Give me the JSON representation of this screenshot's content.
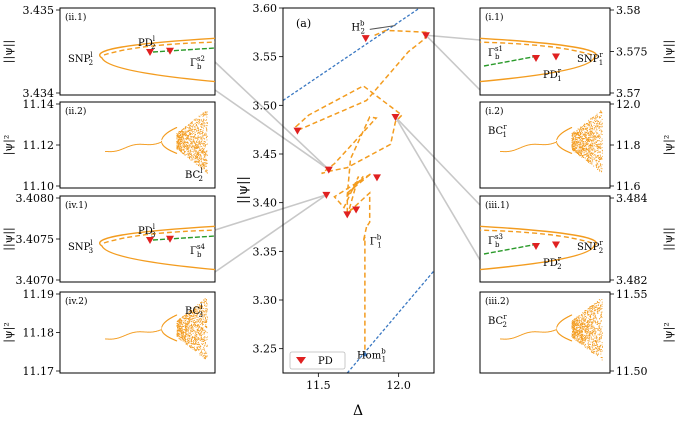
{
  "colors": {
    "orange": "#f39c1f",
    "blue": "#3a78c2",
    "green": "#2a9a2a",
    "red": "#e02020",
    "connector": "#c8c8c8"
  },
  "chart_data": {
    "main": {
      "type": "line",
      "panel_label": "(a)",
      "xlabel": "Δ",
      "ylabel": "||ψ||",
      "xlim": [
        11.28,
        12.22
      ],
      "ylim": [
        3.225,
        3.6
      ],
      "xticks": [
        11.5,
        12.0
      ],
      "xtick_labels": [
        "11.5",
        "12.0"
      ],
      "yticks": [
        3.25,
        3.3,
        3.35,
        3.4,
        3.45,
        3.5,
        3.55,
        3.6
      ],
      "ytick_labels": [
        "3.25",
        "3.30",
        "3.35",
        "3.40",
        "3.45",
        "3.50",
        "3.55",
        "3.60"
      ],
      "legend": {
        "label": "PD",
        "placement": "bottom-left"
      },
      "blue_upper": {
        "x": [
          11.28,
          12.22
        ],
        "y": [
          3.505,
          3.61
        ]
      },
      "blue_lower": {
        "x": [
          11.68,
          12.22
        ],
        "y": [
          3.225,
          3.33
        ]
      },
      "orange_branch": {
        "x": [
          11.85,
          11.92,
          12.18,
          12.16,
          12.06,
          11.8,
          11.38,
          11.36,
          11.44,
          11.78,
          12.02,
          11.98,
          11.95,
          11.68,
          11.56,
          11.52,
          11.6,
          11.86,
          11.82,
          11.7,
          11.68,
          11.78,
          11.68,
          11.68,
          11.82,
          11.82,
          11.8
        ],
        "y": [
          3.572,
          3.577,
          3.575,
          3.568,
          3.555,
          3.505,
          3.475,
          3.478,
          3.49,
          3.52,
          3.49,
          3.483,
          3.46,
          3.436,
          3.432,
          3.43,
          3.44,
          3.487,
          3.488,
          3.445,
          3.408,
          3.427,
          3.407,
          3.389,
          3.41,
          3.38,
          3.375
        ]
      },
      "loop_upper": {
        "x": [
          11.68,
          11.83,
          11.6,
          11.66,
          11.75,
          11.69,
          11.72
        ],
        "y": [
          3.41,
          3.43,
          3.406,
          3.395,
          3.427,
          3.392,
          3.394
        ]
      },
      "gamma_branch": {
        "x": [
          11.8,
          11.78,
          11.79,
          11.79
        ],
        "y": [
          3.375,
          3.36,
          3.365,
          3.245
        ]
      },
      "pd_points": [
        {
          "x": 11.37,
          "y": 3.474
        },
        {
          "x": 11.565,
          "y": 3.434
        },
        {
          "x": 11.795,
          "y": 3.569
        },
        {
          "x": 12.17,
          "y": 3.572
        },
        {
          "x": 11.55,
          "y": 3.408
        },
        {
          "x": 11.68,
          "y": 3.388
        },
        {
          "x": 11.735,
          "y": 3.393
        },
        {
          "x": 11.865,
          "y": 3.426
        },
        {
          "x": 11.98,
          "y": 3.488
        }
      ],
      "annotations": [
        {
          "key": "h2b",
          "base": "H",
          "sub": "2",
          "sup": "b",
          "x": 11.78,
          "y": 3.577
        },
        {
          "key": "gamma1b",
          "base": "Γ",
          "sub": "1",
          "sup": "b",
          "x": 11.87,
          "y": 3.357
        },
        {
          "key": "homb",
          "base": "Hom",
          "sub": "1",
          "sup": "b",
          "x": 11.84,
          "y": 3.244
        }
      ]
    },
    "insets": [
      {
        "id": "ii1",
        "panel": "(ii.1)",
        "ylabel": "||ψ||",
        "yticks": [
          3.434,
          3.435
        ],
        "ytick_labels": [
          "3.434",
          "3.435"
        ],
        "snp": {
          "base": "SNP",
          "sub": "2",
          "sup": "l"
        },
        "pd": {
          "base": "PD",
          "sub": "2",
          "sup": "l"
        },
        "gamma": {
          "base": "Γ",
          "sub": "b",
          "sup": "s2"
        }
      },
      {
        "id": "ii2",
        "panel": "(ii.2)",
        "ylabel": "|ψ|²",
        "yticks": [
          11.1,
          11.12,
          11.14
        ],
        "ytick_labels": [
          "11.10",
          "11.12",
          "11.14"
        ],
        "bc": {
          "base": "BC",
          "sub": "2",
          "sup": "l"
        }
      },
      {
        "id": "iv1",
        "panel": "(iv.1)",
        "ylabel": "||ψ||",
        "yticks": [
          3.407,
          3.4075,
          3.408
        ],
        "ytick_labels": [
          "3.4070",
          "3.4075",
          "3.4080"
        ],
        "snp": {
          "base": "SNP",
          "sub": "3",
          "sup": "l"
        },
        "pd": {
          "base": "PD",
          "sub": "3",
          "sup": "l"
        },
        "gamma": {
          "base": "Γ",
          "sub": "b",
          "sup": "s4"
        }
      },
      {
        "id": "iv2",
        "panel": "(iv.2)",
        "ylabel": "|ψ|²",
        "yticks": [
          11.17,
          11.18,
          11.19
        ],
        "ytick_labels": [
          "11.17",
          "11.18",
          "11.19"
        ],
        "bc": {
          "base": "BC",
          "sub": "3",
          "sup": "l"
        }
      },
      {
        "id": "i1",
        "panel": "(i.1)",
        "ylabel": "||ψ||",
        "yticks": [
          3.57,
          3.575,
          3.58
        ],
        "ytick_labels": [
          "3.57",
          "3.575",
          "3.58"
        ],
        "snp": {
          "base": "SNP",
          "sub": "1",
          "sup": "r"
        },
        "pd": {
          "base": "PD",
          "sub": "1",
          "sup": "r"
        },
        "gamma": {
          "base": "Γ",
          "sub": "b",
          "sup": "s1"
        }
      },
      {
        "id": "i2",
        "panel": "(i.2)",
        "ylabel": "|ψ|²",
        "yticks": [
          11.6,
          11.8,
          12.0
        ],
        "ytick_labels": [
          "11.6",
          "11.8",
          "12.0"
        ],
        "bc": {
          "base": "BC",
          "sub": "1",
          "sup": "r"
        }
      },
      {
        "id": "iii1",
        "panel": "(iii.1)",
        "ylabel": "||ψ||",
        "yticks": [
          3.482,
          3.484
        ],
        "ytick_labels": [
          "3.482",
          "3.484"
        ],
        "snp": {
          "base": "SNP",
          "sub": "2",
          "sup": "r"
        },
        "pd": {
          "base": "PD",
          "sub": "2",
          "sup": "r"
        },
        "gamma": {
          "base": "Γ",
          "sub": "b",
          "sup": "s3"
        }
      },
      {
        "id": "iii2",
        "panel": "(iii.2)",
        "ylabel": "|ψ|²",
        "yticks": [
          11.5,
          11.55
        ],
        "ytick_labels": [
          "11.50",
          "11.55"
        ],
        "bc": {
          "base": "BC",
          "sub": "2",
          "sup": "r"
        }
      }
    ]
  }
}
